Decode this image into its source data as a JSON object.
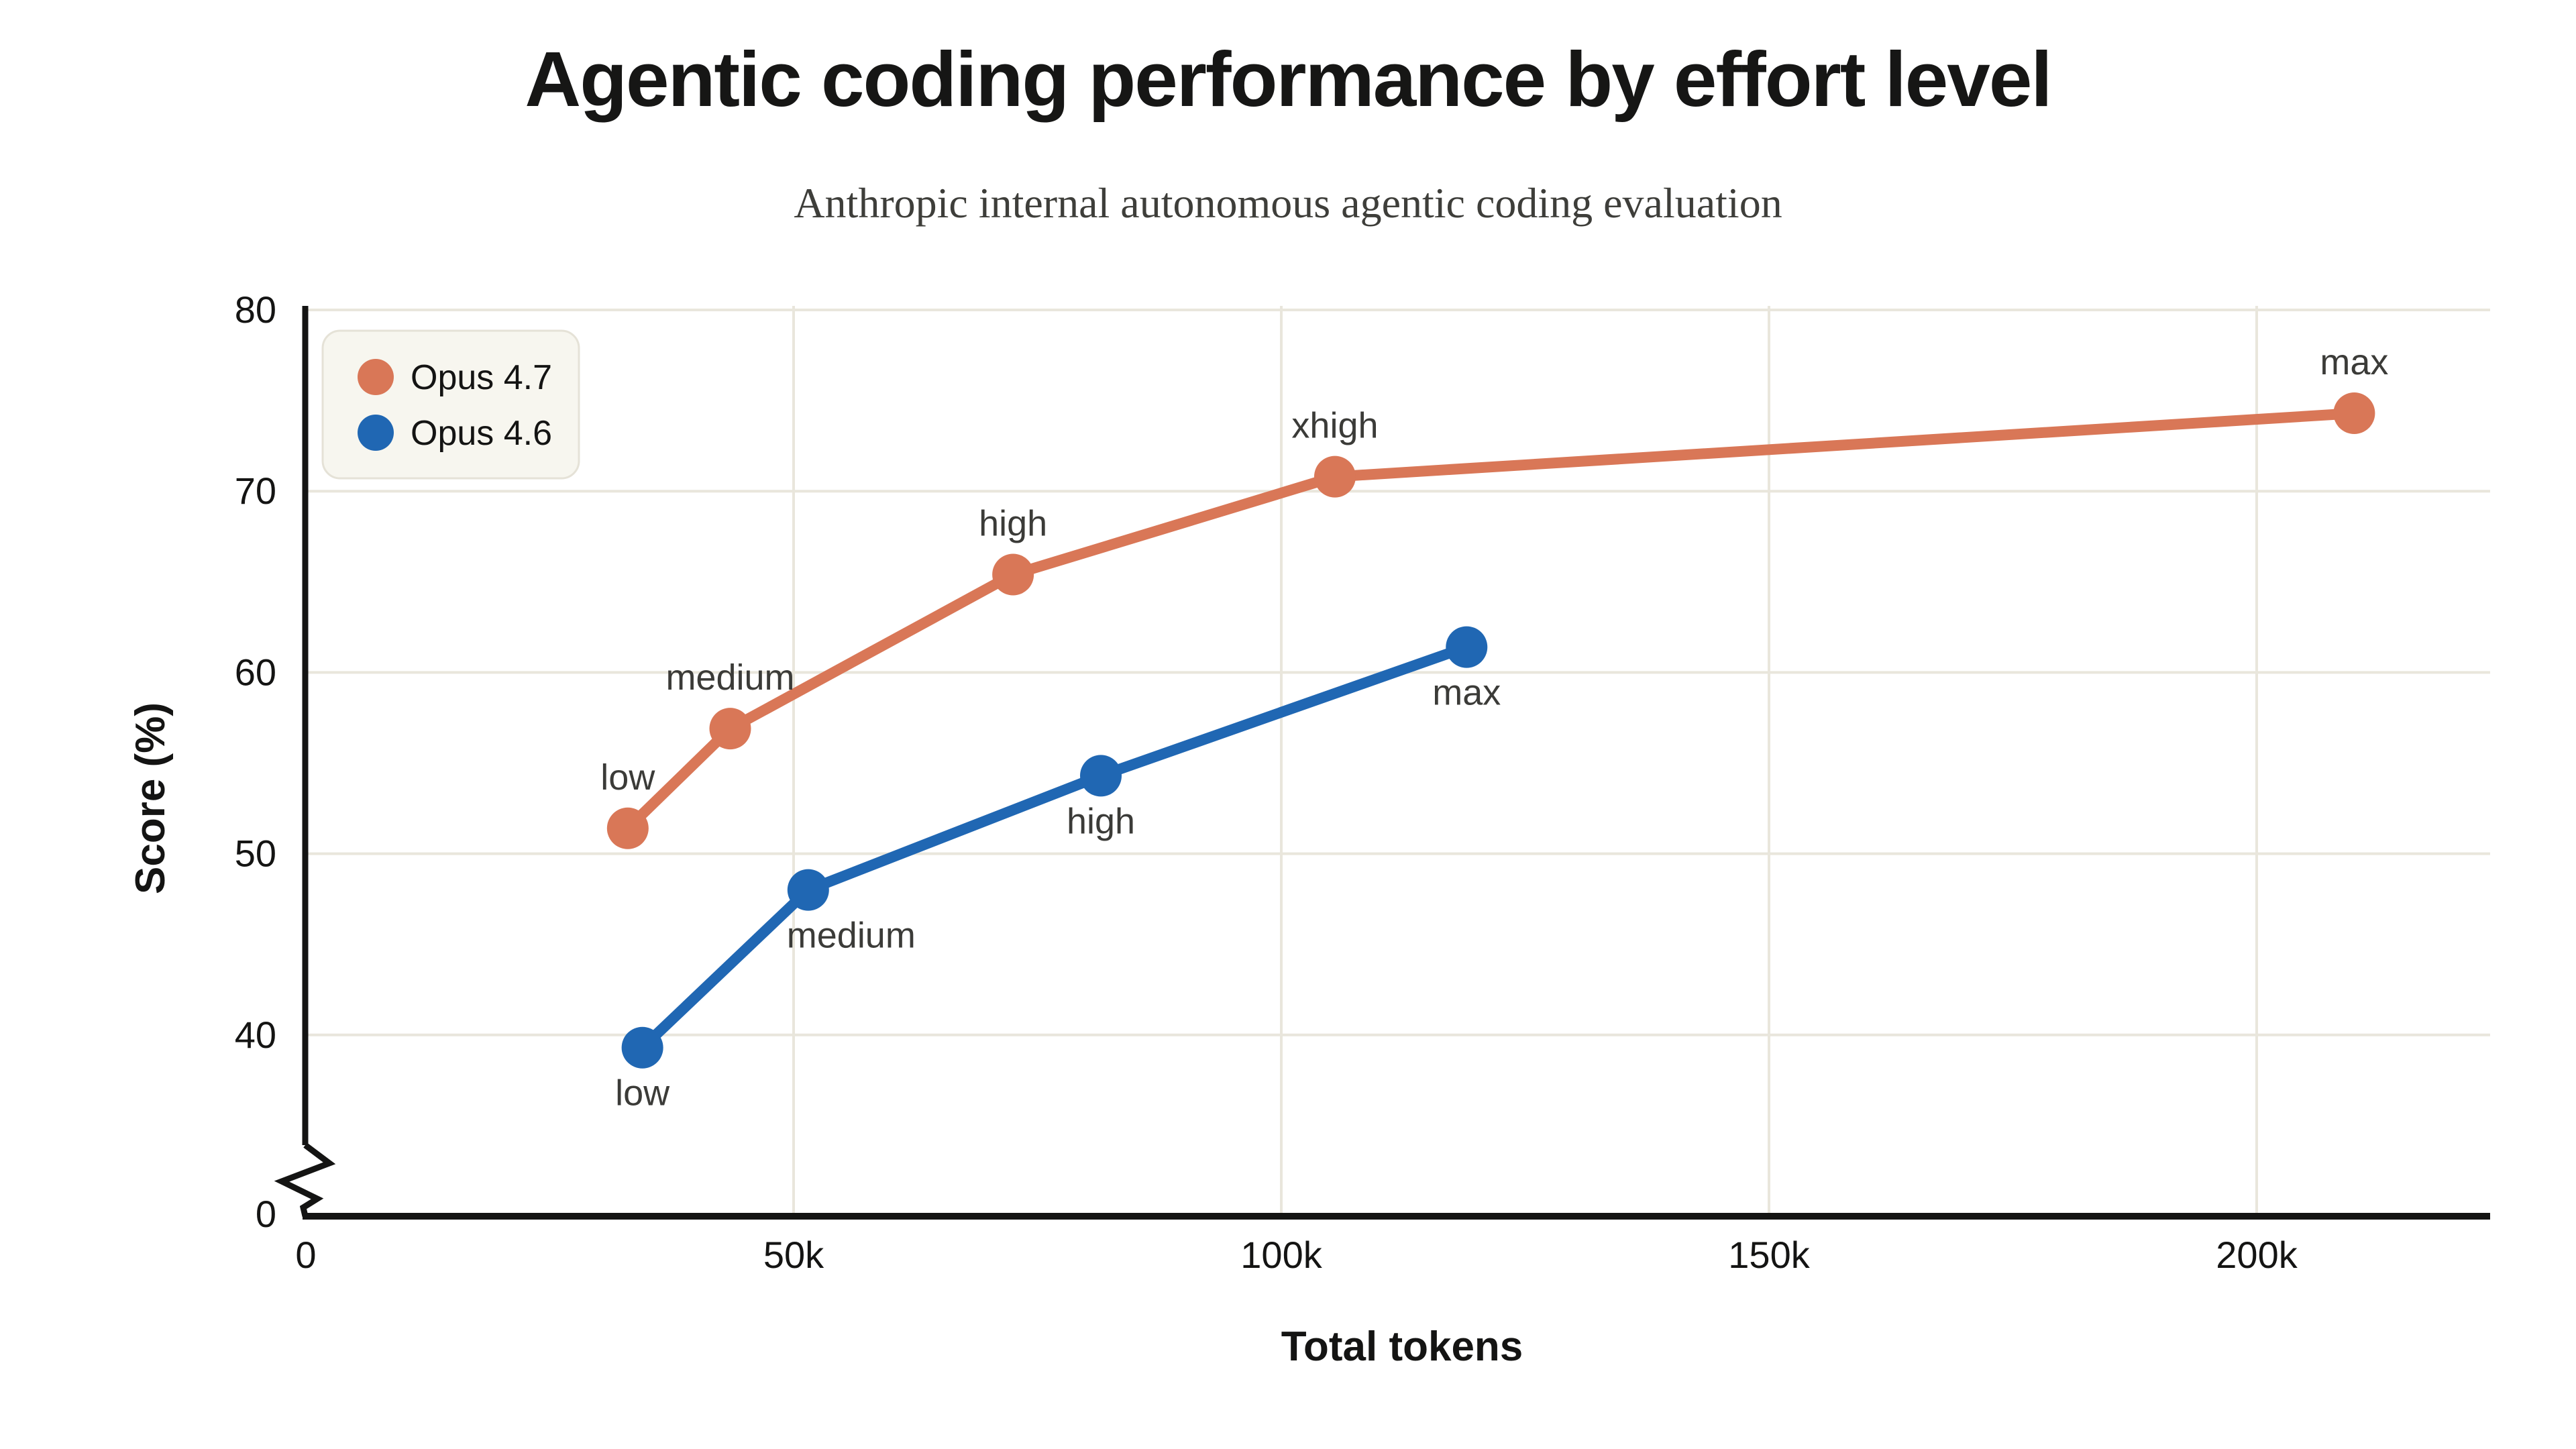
{
  "header": {
    "title": "Agentic coding performance by effort level",
    "subtitle": "Anthropic internal autonomous agentic coding evaluation"
  },
  "chart_data": {
    "type": "line",
    "title": "Agentic coding performance by effort level",
    "subtitle": "Anthropic internal autonomous agentic coding evaluation",
    "xlabel": "Total tokens",
    "ylabel": "Score (%)",
    "grid": true,
    "legend_position": "top-left",
    "axis_break_on_y": true,
    "xlim": [
      0,
      224000
    ],
    "ylim_linear_region": [
      34,
      80
    ],
    "x_ticks": [
      {
        "v": 0,
        "label": "0"
      },
      {
        "v": 50000,
        "label": "50k"
      },
      {
        "v": 100000,
        "label": "100k"
      },
      {
        "v": 150000,
        "label": "150k"
      },
      {
        "v": 200000,
        "label": "200k"
      }
    ],
    "y_ticks": [
      {
        "v": 40,
        "label": "40"
      },
      {
        "v": 50,
        "label": "50"
      },
      {
        "v": 60,
        "label": "60"
      },
      {
        "v": 70,
        "label": "70"
      },
      {
        "v": 80,
        "label": "80"
      }
    ],
    "y_zero_tick_label": "0",
    "series": [
      {
        "name": "Opus 4.7",
        "color": "#D97757",
        "points": [
          {
            "x": 33000,
            "y": 51.4,
            "label": "low",
            "label_pos": "above",
            "label_dx": 0
          },
          {
            "x": 43500,
            "y": 56.9,
            "label": "medium",
            "label_pos": "above",
            "label_dx": 0
          },
          {
            "x": 72500,
            "y": 65.4,
            "label": "high",
            "label_pos": "above",
            "label_dx": 0
          },
          {
            "x": 105500,
            "y": 70.8,
            "label": "xhigh",
            "label_pos": "above",
            "label_dx": 0
          },
          {
            "x": 210000,
            "y": 74.3,
            "label": "max",
            "label_pos": "above",
            "label_dx": 0
          }
        ]
      },
      {
        "name": "Opus 4.6",
        "color": "#2067B3",
        "points": [
          {
            "x": 34500,
            "y": 39.3,
            "label": "low",
            "label_pos": "below",
            "label_dx": 0
          },
          {
            "x": 51500,
            "y": 48.0,
            "label": "medium",
            "label_pos": "below",
            "label_dx": 64
          },
          {
            "x": 81500,
            "y": 54.3,
            "label": "high",
            "label_pos": "below",
            "label_dx": 0
          },
          {
            "x": 119000,
            "y": 61.4,
            "label": "max",
            "label_pos": "below",
            "label_dx": 0
          }
        ]
      }
    ],
    "colors": {
      "background": "#FFFFFF",
      "grid": "#E9E6DC",
      "axis": "#141413",
      "annotation": "#3B3B38",
      "legend_bg": "#F7F6EF",
      "legend_border": "#E5E2D7"
    }
  }
}
